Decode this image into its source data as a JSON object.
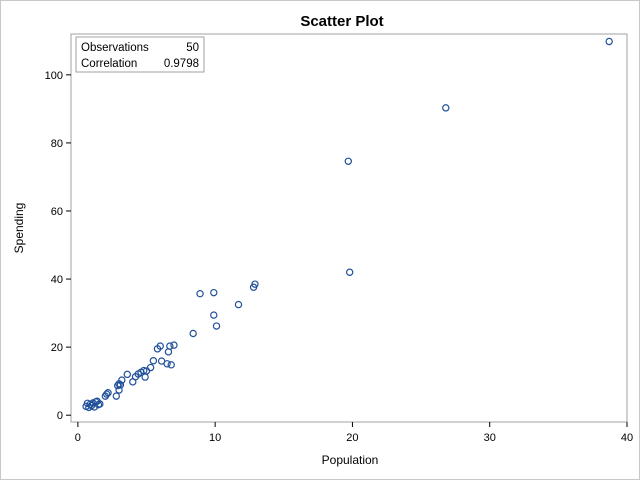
{
  "chart_data": {
    "type": "scatter",
    "title": "Scatter Plot",
    "xlabel": "Population",
    "ylabel": "Spending",
    "xlim": [
      -0.5,
      40
    ],
    "ylim": [
      -2,
      112
    ],
    "xticks": [
      0,
      10,
      20,
      30,
      40
    ],
    "yticks": [
      0,
      20,
      40,
      60,
      80,
      100
    ],
    "grid": false,
    "marker_color": "#1f4f99",
    "inset": {
      "position": "top-left",
      "rows": [
        {
          "label": "Observations",
          "value": "50"
        },
        {
          "label": "Correlation",
          "value": "0.9798"
        }
      ]
    },
    "points": [
      {
        "x": 0.6,
        "y": 2.6
      },
      {
        "x": 0.7,
        "y": 3.5
      },
      {
        "x": 0.8,
        "y": 2.3
      },
      {
        "x": 0.9,
        "y": 3.2
      },
      {
        "x": 1.0,
        "y": 2.8
      },
      {
        "x": 1.1,
        "y": 3.6
      },
      {
        "x": 1.2,
        "y": 2.4
      },
      {
        "x": 1.3,
        "y": 3.9
      },
      {
        "x": 1.5,
        "y": 3.1
      },
      {
        "x": 1.6,
        "y": 3.3
      },
      {
        "x": 2.0,
        "y": 5.6
      },
      {
        "x": 2.2,
        "y": 6.6
      },
      {
        "x": 2.8,
        "y": 5.6
      },
      {
        "x": 2.9,
        "y": 8.7
      },
      {
        "x": 3.0,
        "y": 9.2
      },
      {
        "x": 3.0,
        "y": 7.4
      },
      {
        "x": 3.2,
        "y": 10.3
      },
      {
        "x": 3.6,
        "y": 12.0
      },
      {
        "x": 4.0,
        "y": 9.8
      },
      {
        "x": 4.2,
        "y": 11.3
      },
      {
        "x": 4.6,
        "y": 12.6
      },
      {
        "x": 4.8,
        "y": 13.1
      },
      {
        "x": 4.9,
        "y": 11.2
      },
      {
        "x": 5.0,
        "y": 13.0
      },
      {
        "x": 5.3,
        "y": 14.0
      },
      {
        "x": 5.5,
        "y": 16.0
      },
      {
        "x": 5.8,
        "y": 19.5
      },
      {
        "x": 6.0,
        "y": 20.3
      },
      {
        "x": 6.1,
        "y": 15.9
      },
      {
        "x": 6.5,
        "y": 15.1
      },
      {
        "x": 6.6,
        "y": 18.6
      },
      {
        "x": 6.7,
        "y": 20.3
      },
      {
        "x": 6.8,
        "y": 14.8
      },
      {
        "x": 7.0,
        "y": 20.6
      },
      {
        "x": 8.4,
        "y": 24.0
      },
      {
        "x": 8.9,
        "y": 35.7
      },
      {
        "x": 9.9,
        "y": 29.4
      },
      {
        "x": 9.9,
        "y": 36.0
      },
      {
        "x": 10.1,
        "y": 26.2
      },
      {
        "x": 11.7,
        "y": 32.5
      },
      {
        "x": 12.8,
        "y": 37.6
      },
      {
        "x": 12.9,
        "y": 38.5
      },
      {
        "x": 19.7,
        "y": 74.6
      },
      {
        "x": 19.8,
        "y": 42.0
      },
      {
        "x": 26.8,
        "y": 90.3
      },
      {
        "x": 38.7,
        "y": 109.8
      },
      {
        "x": 1.4,
        "y": 4.1
      },
      {
        "x": 2.1,
        "y": 6.2
      },
      {
        "x": 3.1,
        "y": 8.9
      },
      {
        "x": 4.4,
        "y": 12.1
      }
    ]
  }
}
